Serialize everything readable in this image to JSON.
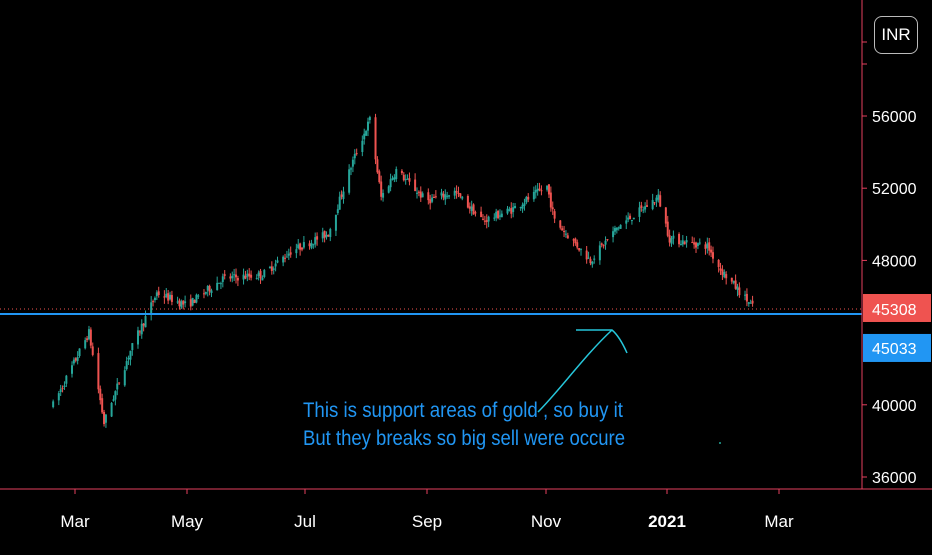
{
  "currency": "INR",
  "colors": {
    "up": "#26a69a",
    "down": "#ef5350",
    "axis_line": "#e5405e",
    "support_line": "#2196f3",
    "annotation": "#2196f3",
    "last_price_bg": "#ef5350",
    "support_bg": "#2196f3",
    "text": "#ffffff"
  },
  "chart_data": {
    "type": "candlestick",
    "x_axis": {
      "ticks": [
        "Mar",
        "May",
        "Jul",
        "Sep",
        "Nov",
        "2021",
        "Mar"
      ]
    },
    "y_axis": {
      "ticks": [
        "36000",
        "40000",
        "48000",
        "52000",
        "56000"
      ],
      "range": [
        35000,
        62000
      ]
    },
    "anchors": [
      [
        "2020-02-20",
        40000
      ],
      [
        "2020-03-10",
        44000
      ],
      [
        "2020-03-18",
        39000
      ],
      [
        "2020-04-01",
        43000
      ],
      [
        "2020-04-15",
        46200
      ],
      [
        "2020-05-01",
        45500
      ],
      [
        "2020-05-20",
        47000
      ],
      [
        "2020-06-10",
        47200
      ],
      [
        "2020-06-25",
        48500
      ],
      [
        "2020-07-15",
        49500
      ],
      [
        "2020-07-28",
        53500
      ],
      [
        "2020-08-06",
        55800
      ],
      [
        "2020-08-12",
        51500
      ],
      [
        "2020-08-20",
        53000
      ],
      [
        "2020-09-05",
        51300
      ],
      [
        "2020-09-20",
        51800
      ],
      [
        "2020-10-05",
        50200
      ],
      [
        "2020-10-20",
        50800
      ],
      [
        "2020-11-08",
        52100
      ],
      [
        "2020-11-12",
        50200
      ],
      [
        "2020-12-01",
        48000
      ],
      [
        "2020-12-15",
        49800
      ],
      [
        "2021-01-06",
        51500
      ],
      [
        "2021-01-12",
        49200
      ],
      [
        "2021-02-01",
        48800
      ],
      [
        "2021-02-08",
        47500
      ],
      [
        "2021-02-26",
        45308
      ]
    ],
    "support_level": 45033,
    "last_price": 45308,
    "price_labels": {
      "last": "45308",
      "support": "45033"
    },
    "annotation": [
      "This is support areas of gold , so buy it",
      "But they breaks so big sell were occure"
    ]
  }
}
